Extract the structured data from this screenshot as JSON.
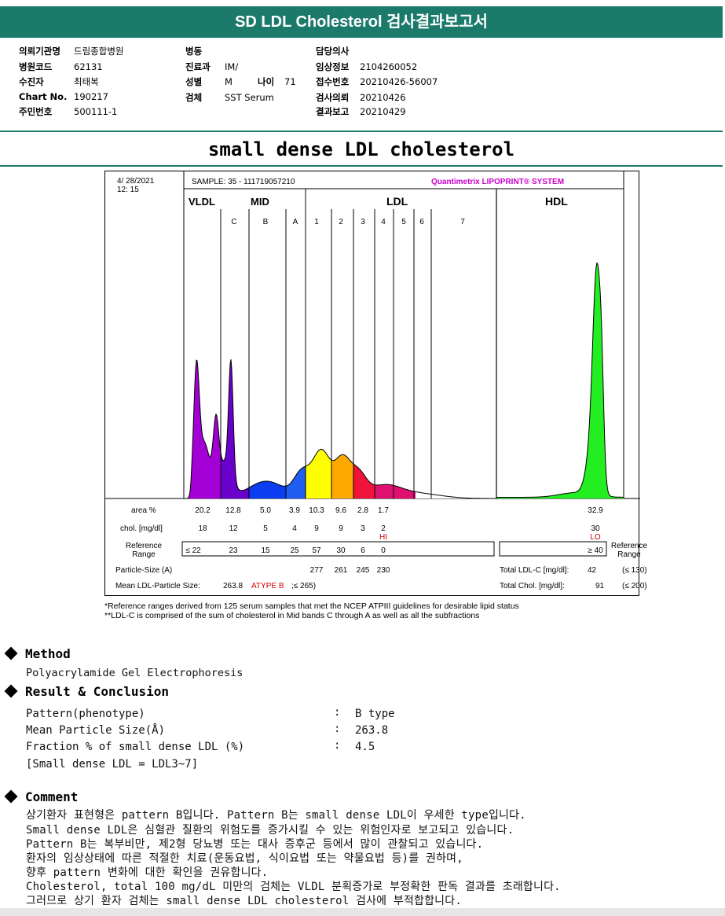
{
  "header": {
    "title": "SD LDL Cholesterol 검사결과보고서"
  },
  "patient": {
    "col1": [
      {
        "label": "의뢰기관명",
        "value": "드림종합병원"
      },
      {
        "label": "병원코드",
        "value": "62131"
      },
      {
        "label": "수진자",
        "value": "최태복"
      },
      {
        "label": "Chart No.",
        "value": "190217"
      },
      {
        "label": "주민번호",
        "value": "500111-1"
      }
    ],
    "col2": [
      {
        "label": "병동",
        "value": ""
      },
      {
        "label": "진료과",
        "value": "IM/"
      },
      {
        "label": "성별",
        "value": "M"
      },
      {
        "label": "검체",
        "value": "SST Serum"
      }
    ],
    "age_label": "나이",
    "age_value": "71",
    "col3": [
      {
        "label": "담당의사",
        "value": ""
      },
      {
        "label": "임상정보",
        "value": "2104260052"
      },
      {
        "label": "접수번호",
        "value": "20210426-56007"
      },
      {
        "label": "검사의뢰",
        "value": "20210426"
      },
      {
        "label": "결과보고",
        "value": "20210429"
      }
    ]
  },
  "report_title": "small dense LDL cholesterol",
  "chart_data": {
    "type": "area",
    "date": "4/ 28/2021",
    "time": "12: 15",
    "sample": "SAMPLE:   35 - 111719057210",
    "brand": "Quantimetrix LIPOPRINT® SYSTEM",
    "groups": [
      "VLDL",
      "MID",
      "LDL",
      "HDL"
    ],
    "bands": [
      "C",
      "B",
      "A",
      "1",
      "2",
      "3",
      "4",
      "5",
      "6",
      "7"
    ],
    "row_labels": {
      "area": "area %",
      "chol": "chol. [mg/dl]",
      "ref": "Reference Range",
      "particle": "Particle-Size (A)",
      "mean": "Mean LDL-Particle Size:"
    },
    "area_pct": {
      "VLDL": "20.2",
      "C": "12.8",
      "B": "5.0",
      "A": "3.9",
      "1": "10.3",
      "2": "9.6",
      "3": "2.8",
      "4": "1.7",
      "HDL": "32.9"
    },
    "chol_mgdl": {
      "VLDL": "18",
      "C": "12",
      "B": "5",
      "A": "4",
      "1": "9",
      "2": "9",
      "3": "3",
      "4": "2",
      "HDL": "30"
    },
    "flags": {
      "ldl4": "HI",
      "hdl": "LO"
    },
    "reference": {
      "VLDL": "≤ 22",
      "C": "23",
      "B": "15",
      "A": "25",
      "1": "57",
      "2": "30",
      "3": "6",
      "4": "0",
      "HDL": "≥ 40"
    },
    "reference_right_label": "Reference Range",
    "particle_size": {
      "1": "277",
      "2": "261",
      "3": "245",
      "4": "230"
    },
    "mean_particle_size": "263.8",
    "atp_label": "ATYPE B",
    "atp_note": ";≤ 265)",
    "total_ldl_label": "Total LDL-C [mg/dl]:",
    "total_ldl_value": "42",
    "total_ldl_ref": "(≤ 130)",
    "total_chol_label": "Total Chol. [mg/dl]:",
    "total_chol_value": "91",
    "total_chol_ref": "(≤ 200)",
    "colors": {
      "VLDL": "#a300d6",
      "C": "#6a00cc",
      "B": "#0a3ef0",
      "A": "#1f5ef0",
      "1": "#ffff00",
      "2": "#ffa800",
      "3": "#f0143c",
      "4": "#e01070",
      "HDL": "#22ee22"
    }
  },
  "footnotes": [
    "*Reference ranges derived from 125 serum samples that met the NCEP ATPIII guidelines for desirable lipid status",
    "**LDL-C is comprised of the sum of cholesterol in Mid bands C through A as well as all the subfractions"
  ],
  "method": {
    "title": "Method",
    "text": "Polyacrylamide Gel Electrophoresis"
  },
  "result": {
    "title": "Result & Conclusion",
    "rows": [
      {
        "label": "Pattern(phenotype)",
        "value": "B type"
      },
      {
        "label": "Mean Particle Size(Å)",
        "value": "263.8"
      },
      {
        "label": "Fraction % of small dense LDL (%)",
        "value": "4.5"
      }
    ],
    "note": "[Small dense LDL = LDL3~7]"
  },
  "comment": {
    "title": "Comment",
    "lines": [
      "상기환자 표현형은 pattern B입니다. Pattern B는 small dense LDL이 우세한 type입니다.",
      "Small dense LDL은 심혈관 질환의 위험도를 증가시킬 수 있는 위험인자로 보고되고 있습니다.",
      "Pattern B는 복부비만, 제2형 당뇨병 또는 대사 증후군 등에서 많이 관찰되고 있습니다.",
      "환자의 임상상태에 따른 적절한 치료(운동요법, 식이요법 또는 약물요법 등)를 권하며,",
      "향후 pattern 변화에 대한 확인을 권유합니다.",
      "Cholesterol, total 100 mg/dL 미만의 검체는 VLDL 분획증가로 부정확한 판독 결과를 초래합니다.",
      "그러므로 상기 환자 검체는 small dense LDL cholesterol 검사에 부적합합니다."
    ]
  }
}
